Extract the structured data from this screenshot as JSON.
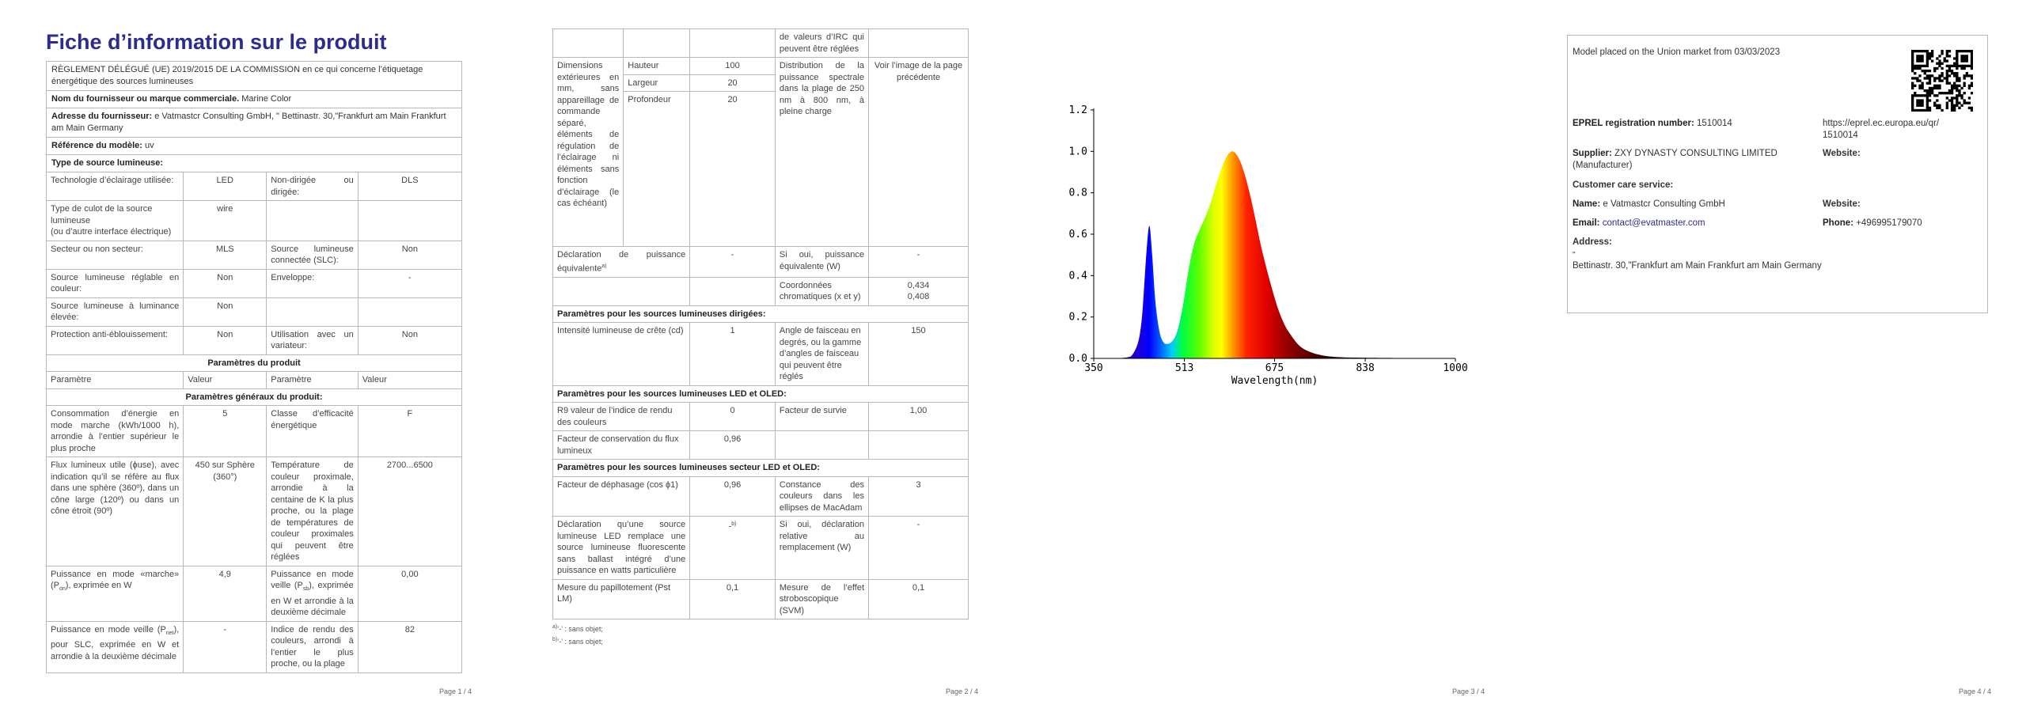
{
  "page1": {
    "title": "Fiche d’information sur le produit",
    "regulation": "RÈGLEMENT DÉLÉGUÉ (UE) 2019/2015 DE LA COMMISSION en ce qui concerne l’étiquetage énergétique des sources lumineuses",
    "supplier_label": "Nom du fournisseur ou marque commerciale.",
    "supplier_value": "Marine Color",
    "address_label": "Adresse du fournisseur:",
    "address_value": "e Vatmastcr Consulting GmbH, \" Bettinastr. 30,\"Frankfurt am Main Frankfurt am Main Germany",
    "model_label": "Référence du modèle:",
    "model_value": "uv",
    "source_type_label": "Type de source lumineuse:",
    "rows": [
      [
        "Technologie d’éclairage utilisée:",
        "LED",
        "Non-dirigée ou dirigée:",
        "DLS"
      ],
      [
        "Type de culot de la source lumineuse\n(ou d’autre interface électrique)",
        "wire",
        "",
        ""
      ],
      [
        "Secteur ou non secteur:",
        "MLS",
        "Source lumineuse connectée (SLC):",
        "Non"
      ],
      [
        "Source lumineuse réglable en couleur:",
        "Non",
        "Enveloppe:",
        "-"
      ],
      [
        "Source lumineuse à luminance élevée:",
        "Non",
        "",
        ""
      ],
      [
        "Protection anti-éblouissement:",
        "Non",
        "Utilisation avec un variateur:",
        "Non"
      ]
    ],
    "params_heading": "Paramètres du produit",
    "col_headers": [
      "Paramètre",
      "Valeur",
      "Paramètre",
      "Valeur"
    ],
    "general_heading": "Paramètres généraux du produit:",
    "general_rows": [
      [
        "Consommation d’énergie en mode marche (kWh/1000 h), arrondie à l’entier supérieur le plus proche",
        "5",
        "Classe d’efficacité énergétique",
        "F"
      ],
      [
        "Flux lumineux utile (ɸuse), avec indication qu’il se réfère au flux dans une sphère (360º), dans un cône large (120º) ou dans un cône étroit (90º)",
        "450 sur Sphère (360°)",
        "Température de couleur proximale, arrondie à la centaine de K la plus proche, ou la plage de températures de couleur proximales qui peuvent être réglées",
        "2700...6500"
      ],
      [
        "Puissance en mode «marche» (P",
        "4,9",
        "Puissance en mode veille (P",
        "0,00"
      ],
      [
        "Puissance en mode veille (P",
        "-",
        "Indice de rendu des couleurs, arrondi à l’entier le plus proche, ou la plage",
        "82"
      ]
    ],
    "r3_a_sub": "on",
    "r3_a_tail": "), exprimée en W",
    "r3_b_sub": "sb",
    "r3_b_tail": "), exprimée en W et arrondie à la deuxième décimale",
    "r4_a_sub": "net",
    "r4_a_tail": "), pour SLC, exprimée en W et arrondie à la deuxième décimale",
    "page_num": "Page 1 / 4"
  },
  "page2": {
    "cont_text": "de valeurs d’IRC qui peuvent être réglées",
    "dim_label": "Dimensions extérieures en mm, sans appareillage de commande séparé, éléments de régulation de l’éclairage ni éléments sans fonction d’éclairage (le cas échéant)",
    "dims": [
      [
        "Hauteur",
        "100"
      ],
      [
        "Largeur",
        "20"
      ],
      [
        "Profondeur",
        "20"
      ]
    ],
    "spd_label": "Distribution de la puissance spectrale dans la plage de 250 nm à 800 nm, à pleine charge",
    "spd_value": "Voir l’image de la page précédente",
    "equiv_label": "Déclaration de puissance équivalente",
    "equiv_sup": "a)",
    "equiv_value": "-",
    "equiv_if": "Si oui, puissance équivalente (W)",
    "equiv_if_value": "-",
    "chroma_label": "Coordonnées chromatiques (x et y)",
    "chroma_value_1": "0,434",
    "chroma_value_2": "0,408",
    "directed_heading": "Paramètres pour les sources lumineuses dirigées:",
    "directed_row": [
      "Intensité lumineuse de crête (cd)",
      "1",
      "Angle de faisceau en degrés, ou la gamme d’angles de faisceau qui peuvent être réglés",
      "150"
    ],
    "led_heading": "Paramètres pour les sources lumineuses LED et OLED:",
    "led_rows": [
      [
        "R9 valeur de l’indice de rendu des couleurs",
        "0",
        "Facteur de survie",
        "1,00"
      ],
      [
        "Facteur de conservation du flux lumineux",
        "0,96",
        "",
        ""
      ]
    ],
    "mains_heading": "Paramètres pour les sources lumineuses secteur LED et OLED:",
    "mains_rows": [
      [
        "Facteur de déphasage (cos ϕ1)",
        "0,96",
        "Constance des couleurs dans les ellipses de MacAdam",
        "3"
      ],
      [
        "Déclaration qu’une source lumineuse LED remplace une source lumineuse fluorescente sans ballast intégré d’une puissance en watts particulière",
        "-",
        "Si oui, déclaration relative au remplacement (W)",
        "-"
      ],
      [
        "Mesure du papillotement (Pst LM)",
        "0,1",
        "Mesure de l’effet stroboscopique (SVM)",
        "0,1"
      ]
    ],
    "mains_sup": "b)",
    "footnote_a": "a)",
    "footnote_a_text": "‘-’ : sans objet;",
    "footnote_b": "b)",
    "footnote_b_text": "‘-’ : sans objet;",
    "page_num": "Page 2 / 4"
  },
  "page3": {
    "page_num": "Page 3 / 4",
    "chart_data": {
      "type": "area",
      "title": "",
      "xlabel": "Wavelength(nm)",
      "ylabel": "",
      "x_ticks": [
        350,
        513,
        675,
        838,
        1000
      ],
      "y_ticks": [
        "0.0",
        "0.2",
        "0.4",
        "0.6",
        "0.8",
        "1.0",
        "1.2"
      ],
      "xlim": [
        350,
        1000
      ],
      "ylim": [
        0,
        1.2
      ],
      "grid": false,
      "series": [
        {
          "x": [
            350,
            380,
            410,
            420,
            430,
            436,
            440,
            445,
            450,
            455,
            460,
            465,
            470,
            475,
            480,
            490,
            500,
            510,
            520,
            530,
            540,
            550,
            560,
            570,
            580,
            590,
            600,
            610,
            620,
            630,
            640,
            650,
            660,
            670,
            680,
            690,
            700,
            720,
            740,
            760,
            780,
            800,
            850,
            900,
            1000
          ],
          "y": [
            0.0,
            0.0,
            0.005,
            0.02,
            0.08,
            0.18,
            0.32,
            0.52,
            0.64,
            0.5,
            0.3,
            0.18,
            0.11,
            0.08,
            0.07,
            0.08,
            0.13,
            0.25,
            0.42,
            0.55,
            0.62,
            0.68,
            0.75,
            0.84,
            0.92,
            0.98,
            1.0,
            0.97,
            0.9,
            0.8,
            0.68,
            0.55,
            0.44,
            0.34,
            0.25,
            0.18,
            0.13,
            0.06,
            0.03,
            0.015,
            0.008,
            0.005,
            0.003,
            0.002,
            0.0
          ]
        }
      ]
    }
  },
  "page4": {
    "placed": "Model placed on the Union market from 03/03/2023",
    "eprel_label": "EPREL registration number:",
    "eprel_value": "1510014",
    "eprel_link": "https://eprel.ec.europa.eu/qr/1510014",
    "supplier_label": "Supplier:",
    "supplier_value": "ZXY DYNASTY CONSULTING LIMITED (Manufacturer)",
    "website_label": "Website:",
    "care_label": "Customer care service:",
    "name_label": "Name:",
    "name_value": "e Vatmastcr Consulting GmbH",
    "website2_label": "Website:",
    "email_label": "Email:",
    "email_value": "contact@evatmaster.com",
    "phone_label": "Phone:",
    "phone_value": "+496995179070",
    "address_label": "Address:",
    "address_quote": "\"",
    "address_value": "Bettinastr. 30,\"Frankfurt am Main Frankfurt am Main Germany",
    "page_num": "Page 4 / 4"
  }
}
